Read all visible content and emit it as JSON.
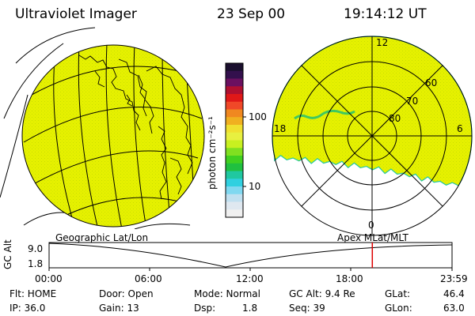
{
  "header": {
    "instrument": "Ultraviolet Imager",
    "date": "23 Sep 00",
    "time": "19:14:12 UT"
  },
  "colorbar": {
    "unit_label": "photon cm⁻²s⁻¹",
    "ticks": [
      "100",
      "10"
    ],
    "colors_top_to_bottom": [
      "#1a0f2e",
      "#33104d",
      "#6b1060",
      "#b01030",
      "#e01818",
      "#f04828",
      "#f08820",
      "#f0b020",
      "#f0e030",
      "#e8f040",
      "#c8f020",
      "#80e020",
      "#40d020",
      "#20c040",
      "#20c8a0",
      "#30d0e0",
      "#80d8f0",
      "#c0e0f0",
      "#dfe8f0",
      "#f0f0f0"
    ]
  },
  "left_panel": {
    "label": "Geographic Lat/Lon",
    "fill_color": "#e6f000"
  },
  "right_panel": {
    "label": "Apex MLat/MLT",
    "mlt_labels": [
      "12",
      "18",
      "6",
      "0"
    ],
    "mlat_labels": [
      "60",
      "70",
      "80"
    ],
    "fill_color": "#e6f000"
  },
  "altitude_plot": {
    "ylabel": "GC Alt",
    "y_ticks": [
      "9.0",
      "1.8"
    ],
    "x_ticks": [
      "00:00",
      "06:00",
      "12:00",
      "18:00",
      "23:59"
    ],
    "marker_color": "#dd0000",
    "marker_time_hours": 19.24
  },
  "status": {
    "flt": "Flt: HOME",
    "ip": "IP: 36.0",
    "door": "Door: Open",
    "gain": "Gain: 13",
    "mode": "Mode: Normal",
    "dsp_label": "Dsp:",
    "dsp_value": "1.8",
    "gcalt": "GC Alt: 9.4 Re",
    "seq": "Seq: 39",
    "glat_label": "GLat:",
    "glat_value": "46.4",
    "glon_label": "GLon:",
    "glon_value": "63.0"
  }
}
